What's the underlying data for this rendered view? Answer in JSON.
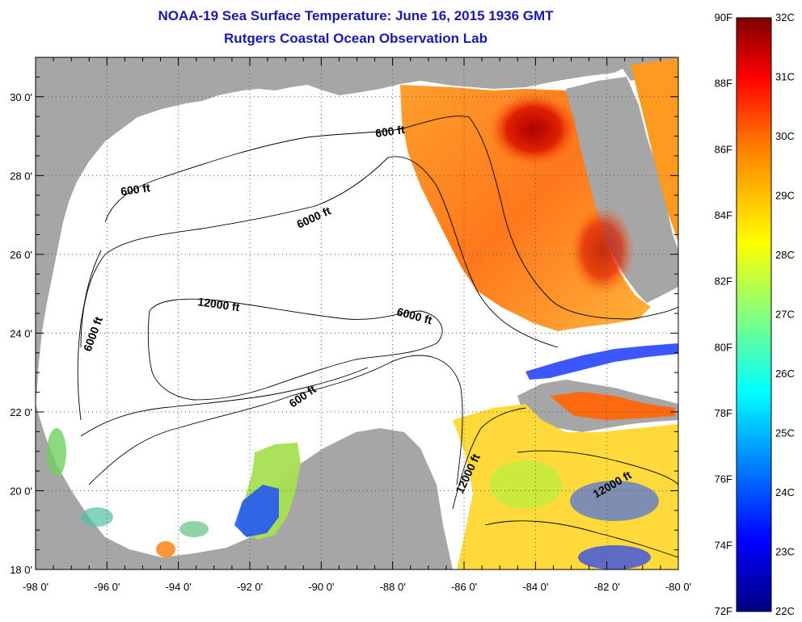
{
  "title": "NOAA-19 Sea Surface Temperature:  June 16, 2015 1936 GMT",
  "subtitle": "Rutgers Coastal Ocean Observation Lab",
  "map": {
    "lon_ticks": [
      "-98 0'",
      "-96 0'",
      "-94 0'",
      "-92 0'",
      "-90 0'",
      "-88 0'",
      "-86 0'",
      "-84 0'",
      "-82 0'",
      "-80 0'"
    ],
    "lat_ticks": [
      "30 0'",
      "28 0'",
      "26 0'",
      "24 0'",
      "22 0'",
      "20 0'",
      "18 0'"
    ],
    "lon_range": [
      -98,
      -80
    ],
    "lat_range": [
      18,
      31
    ],
    "contour_labels": [
      "600 ft",
      "600 ft",
      "6000 ft",
      "12000 ft",
      "6000 ft",
      "6000 ft",
      "600 ft",
      "12000 ft",
      "12000 ft"
    ],
    "colors": {
      "land": "#a6a6a6",
      "cloud": "#ffffff",
      "contour": "#000000"
    }
  },
  "colorbar": {
    "f_labels": [
      "90F",
      "88F",
      "86F",
      "84F",
      "82F",
      "80F",
      "78F",
      "76F",
      "74F",
      "72F"
    ],
    "c_labels": [
      "32C",
      "31C",
      "30C",
      "29C",
      "28C",
      "27C",
      "26C",
      "25C",
      "24C",
      "23C",
      "22C"
    ],
    "range_c": [
      22,
      32
    ],
    "colors": [
      "#000080",
      "#0000ff",
      "#00ffff",
      "#ffff00",
      "#ff8000",
      "#ff0000",
      "#800000"
    ]
  }
}
